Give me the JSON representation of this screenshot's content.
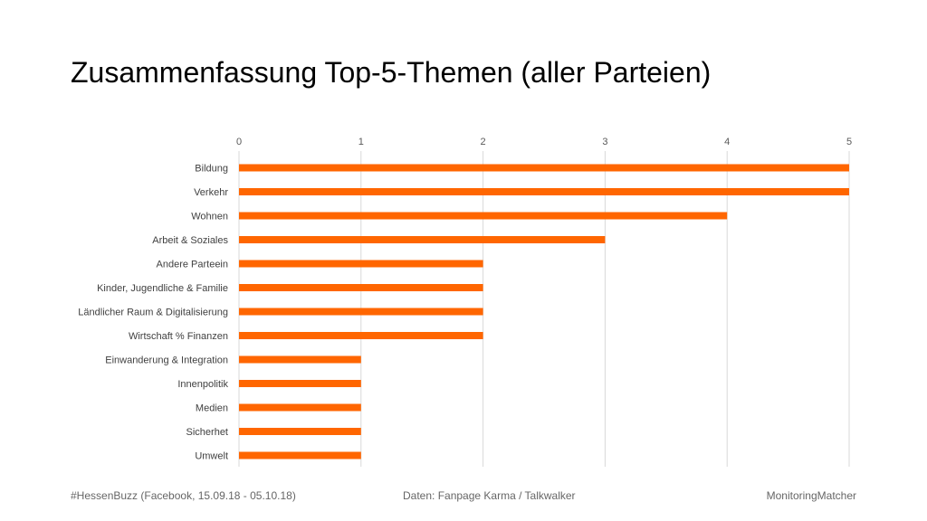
{
  "slide": {
    "title": "Zusammenfassung Top-5-Themen (aller Parteien)"
  },
  "footer": {
    "left": "#HessenBuzz (Facebook, 15.09.18 - 05.10.18)",
    "center": "Daten: Fanpage Karma / Talkwalker",
    "right": "MonitoringMatcher"
  },
  "chart_data": {
    "type": "bar",
    "orientation": "horizontal",
    "categories": [
      "Bildung",
      "Verkehr",
      "Wohnen",
      "Arbeit & Soziales",
      "Andere Parteein",
      "Kinder, Jugendliche & Familie",
      "Ländlicher Raum & Digitalisierung",
      "Wirtschaft % Finanzen",
      "Einwanderung & Integration",
      "Innenpolitik",
      "Medien",
      "Sicherhet",
      "Umwelt"
    ],
    "values": [
      5,
      5,
      4,
      3,
      2,
      2,
      2,
      2,
      1,
      1,
      1,
      1,
      1
    ],
    "xlim": [
      0,
      5
    ],
    "xticks": [
      "0",
      "1",
      "2",
      "3",
      "4",
      "5"
    ],
    "xaxis_position": "top",
    "grid": true,
    "bar_color": "#FF6600",
    "grid_color": "#D9D9D9"
  }
}
